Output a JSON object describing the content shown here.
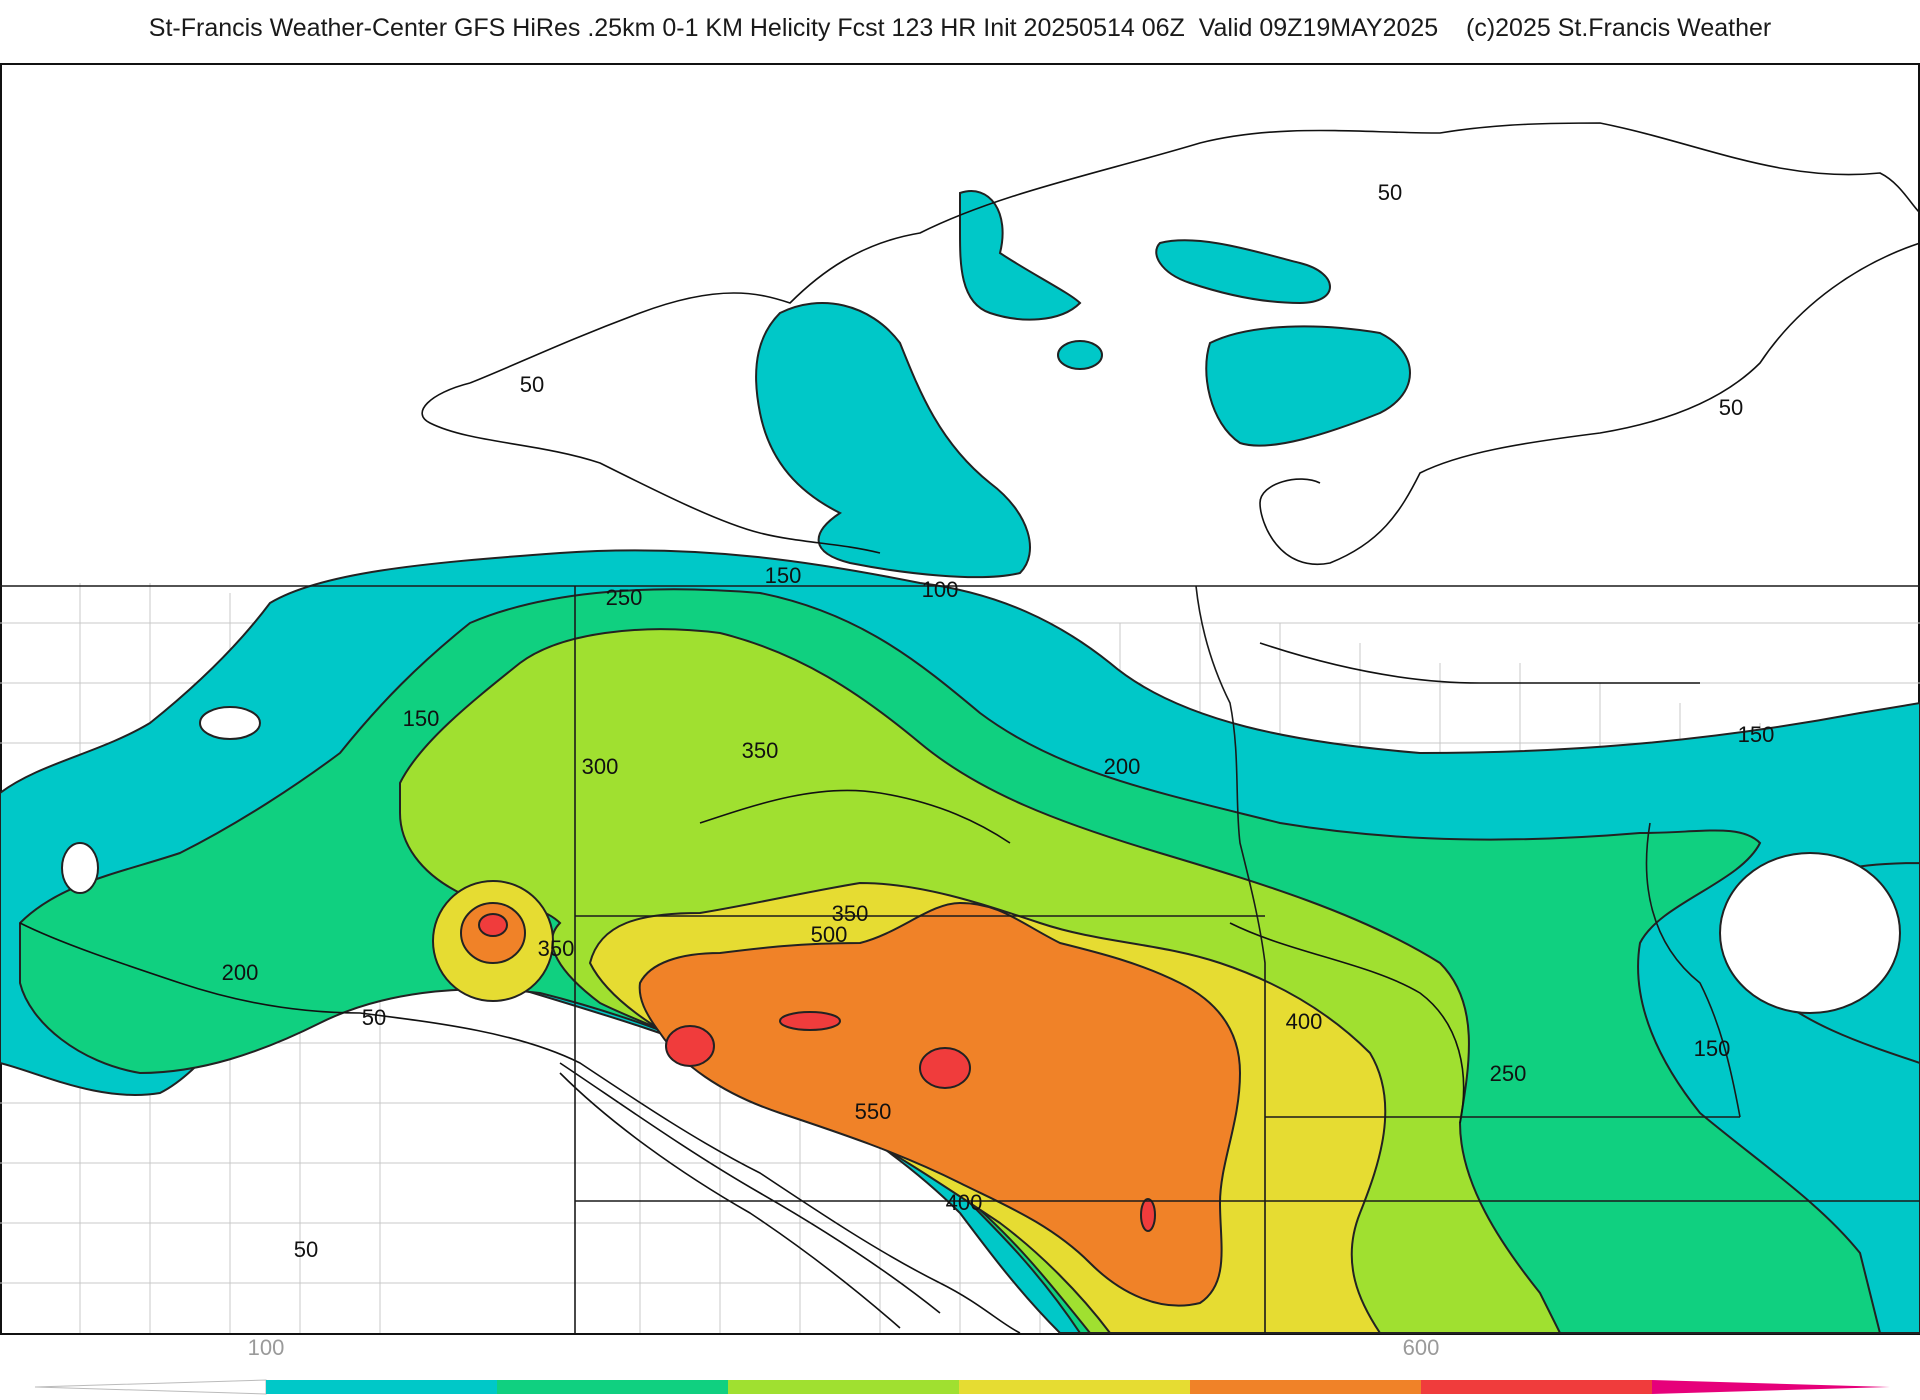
{
  "header": {
    "title": "St-Francis Weather-Center GFS HiRes .25km 0-1 KM Helicity Fcst 123 HR Init 20250514 06Z  Valid 09Z19MAY2025",
    "copyright": "(c)2025 St.Francis Weather"
  },
  "map": {
    "field": "0-1 KM Helicity",
    "contour_labels": [
      "50",
      "50",
      "50",
      "50",
      "50",
      "100",
      "150",
      "150",
      "150",
      "150",
      "200",
      "200",
      "250",
      "250",
      "300",
      "350",
      "350",
      "350",
      "400",
      "400",
      "500",
      "550"
    ]
  },
  "colorbar": {
    "tick_labels": [
      "100",
      "600"
    ],
    "bins": [
      {
        "level": "50-100",
        "color": "#00c8c8"
      },
      {
        "level": "100-150",
        "color": "#00c8c8"
      },
      {
        "level": "150-200",
        "color": "#10d080"
      },
      {
        "level": "200-250",
        "color": "#10d080"
      },
      {
        "level": "250-300",
        "color": "#a0e030"
      },
      {
        "level": "300-350",
        "color": "#a0e030"
      },
      {
        "level": "350-400",
        "color": "#e6dc32"
      },
      {
        "level": "400-450",
        "color": "#e6dc32"
      },
      {
        "level": "450-500",
        "color": "#f08228"
      },
      {
        "level": "500-550",
        "color": "#f08228"
      },
      {
        "level": "550-600",
        "color": "#f03c3c"
      },
      {
        "level": "600+",
        "color": "#e6007a"
      }
    ]
  }
}
